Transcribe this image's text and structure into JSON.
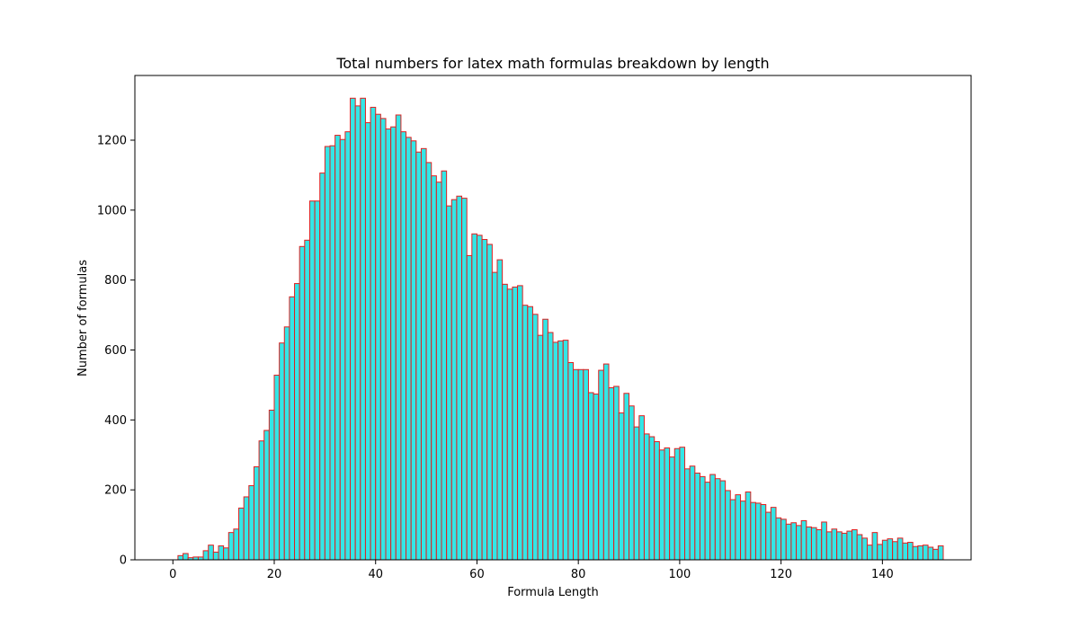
{
  "chart_data": {
    "type": "bar",
    "title": "Total numbers for latex math formulas breakdown by length",
    "xlabel": "Formula Length",
    "ylabel": "Number of formulas",
    "xlim": [
      -7.5,
      157.5
    ],
    "ylim": [
      0,
      1385
    ],
    "x_ticks": [
      0,
      20,
      40,
      60,
      80,
      100,
      120,
      140
    ],
    "y_ticks": [
      0,
      200,
      400,
      600,
      800,
      1000,
      1200
    ],
    "grid": false,
    "bar_fill_color": "#33e6e6",
    "bar_edge_color": "#e02020",
    "bin_start": 0,
    "bin_width": 1,
    "values": [
      0,
      12,
      18,
      6,
      8,
      8,
      26,
      42,
      22,
      40,
      34,
      78,
      88,
      148,
      180,
      212,
      266,
      340,
      370,
      428,
      528,
      620,
      666,
      752,
      790,
      896,
      914,
      1026,
      1026,
      1106,
      1182,
      1184,
      1214,
      1202,
      1224,
      1320,
      1298,
      1320,
      1250,
      1294,
      1274,
      1262,
      1232,
      1238,
      1272,
      1224,
      1208,
      1198,
      1166,
      1176,
      1136,
      1098,
      1080,
      1112,
      1012,
      1030,
      1040,
      1034,
      870,
      932,
      928,
      916,
      902,
      822,
      858,
      788,
      774,
      780,
      784,
      728,
      724,
      702,
      642,
      688,
      650,
      622,
      626,
      628,
      564,
      544,
      544,
      544,
      478,
      474,
      542,
      560,
      492,
      496,
      420,
      476,
      440,
      380,
      412,
      360,
      352,
      338,
      314,
      320,
      294,
      318,
      322,
      260,
      268,
      248,
      238,
      222,
      244,
      232,
      226,
      198,
      172,
      186,
      168,
      194,
      164,
      162,
      158,
      136,
      150,
      120,
      116,
      102,
      106,
      98,
      112,
      94,
      92,
      86,
      108,
      80,
      88,
      80,
      76,
      82,
      86,
      72,
      62,
      42,
      78,
      44,
      56,
      60,
      52,
      62,
      48,
      50,
      38,
      40,
      42,
      36,
      30,
      40
    ]
  }
}
